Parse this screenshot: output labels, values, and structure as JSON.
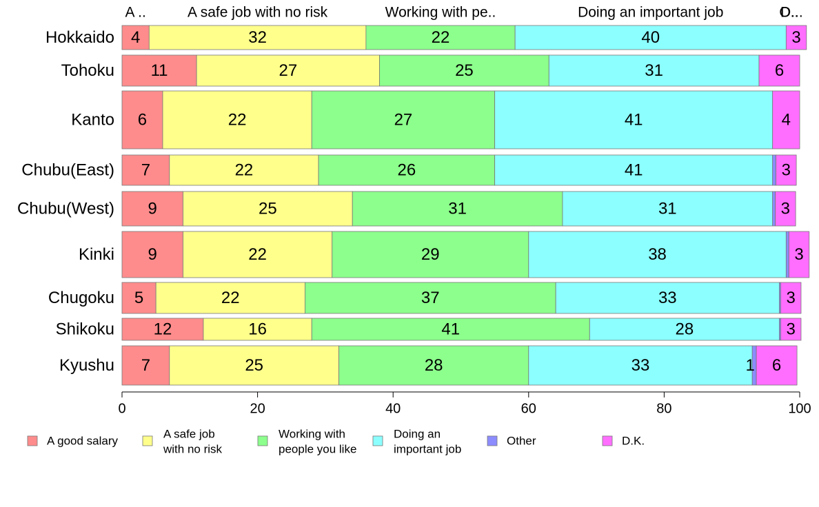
{
  "chart_data": {
    "type": "bar",
    "orientation": "horizontal",
    "stacked": true,
    "categories": [
      "Hokkaido",
      "Tohoku",
      "Kanto",
      "Chubu(East)",
      "Chubu(West)",
      "Kinki",
      "Chugoku",
      "Shikoku",
      "Kyushu"
    ],
    "series": [
      {
        "name": "A good salary",
        "color": "#ff8c8c",
        "values": [
          4,
          11,
          6,
          7,
          9,
          9,
          5,
          12,
          7
        ]
      },
      {
        "name": "A safe job with no risk",
        "color": "#ffff8c",
        "values": [
          32,
          27,
          22,
          22,
          25,
          22,
          22,
          16,
          25
        ]
      },
      {
        "name": "Working with people you like",
        "color": "#8cff8c",
        "values": [
          22,
          25,
          27,
          26,
          31,
          29,
          37,
          41,
          28
        ]
      },
      {
        "name": "Doing an important job",
        "color": "#8cffff",
        "values": [
          40,
          31,
          41,
          41,
          31,
          38,
          33,
          28,
          33
        ]
      },
      {
        "name": "Other",
        "color": "#8c8cff",
        "values": [
          0,
          0,
          0,
          0.5,
          0.4,
          0.4,
          0.2,
          0.2,
          0.6
        ]
      },
      {
        "name": "D.K.",
        "color": "#ff6eff",
        "values": [
          3,
          6,
          4,
          3,
          3,
          3,
          3,
          3,
          6
        ]
      }
    ],
    "data_labels": [
      [
        "4",
        "32",
        "22",
        "40",
        "",
        "3"
      ],
      [
        "11",
        "27",
        "25",
        "31",
        "",
        "6"
      ],
      [
        "6",
        "22",
        "27",
        "41",
        "",
        "4"
      ],
      [
        "7",
        "22",
        "26",
        "41",
        "",
        "3"
      ],
      [
        "9",
        "25",
        "31",
        "31",
        "",
        "3"
      ],
      [
        "9",
        "22",
        "29",
        "38",
        "",
        "3"
      ],
      [
        "5",
        "22",
        "37",
        "33",
        "",
        "3"
      ],
      [
        "12",
        "16",
        "41",
        "28",
        "",
        "3"
      ],
      [
        "7",
        "25",
        "28",
        "33",
        "1",
        "6"
      ]
    ],
    "column_headers": [
      "A ..",
      "A safe job with no risk",
      "Working with pe..",
      "Doing an important job",
      "O..",
      "D..."
    ],
    "x_ticks": [
      "0",
      "20",
      "40",
      "60",
      "80",
      "100"
    ],
    "xlim": [
      0,
      100
    ],
    "legend": {
      "position": "bottom",
      "entries": [
        {
          "lines": [
            "A good salary"
          ]
        },
        {
          "lines": [
            "A safe job",
            "with no risk"
          ]
        },
        {
          "lines": [
            "Working with",
            "people you like"
          ]
        },
        {
          "lines": [
            "Doing an",
            "important job"
          ]
        },
        {
          "lines": [
            "Other"
          ]
        },
        {
          "lines": [
            "D.K."
          ]
        }
      ]
    }
  }
}
